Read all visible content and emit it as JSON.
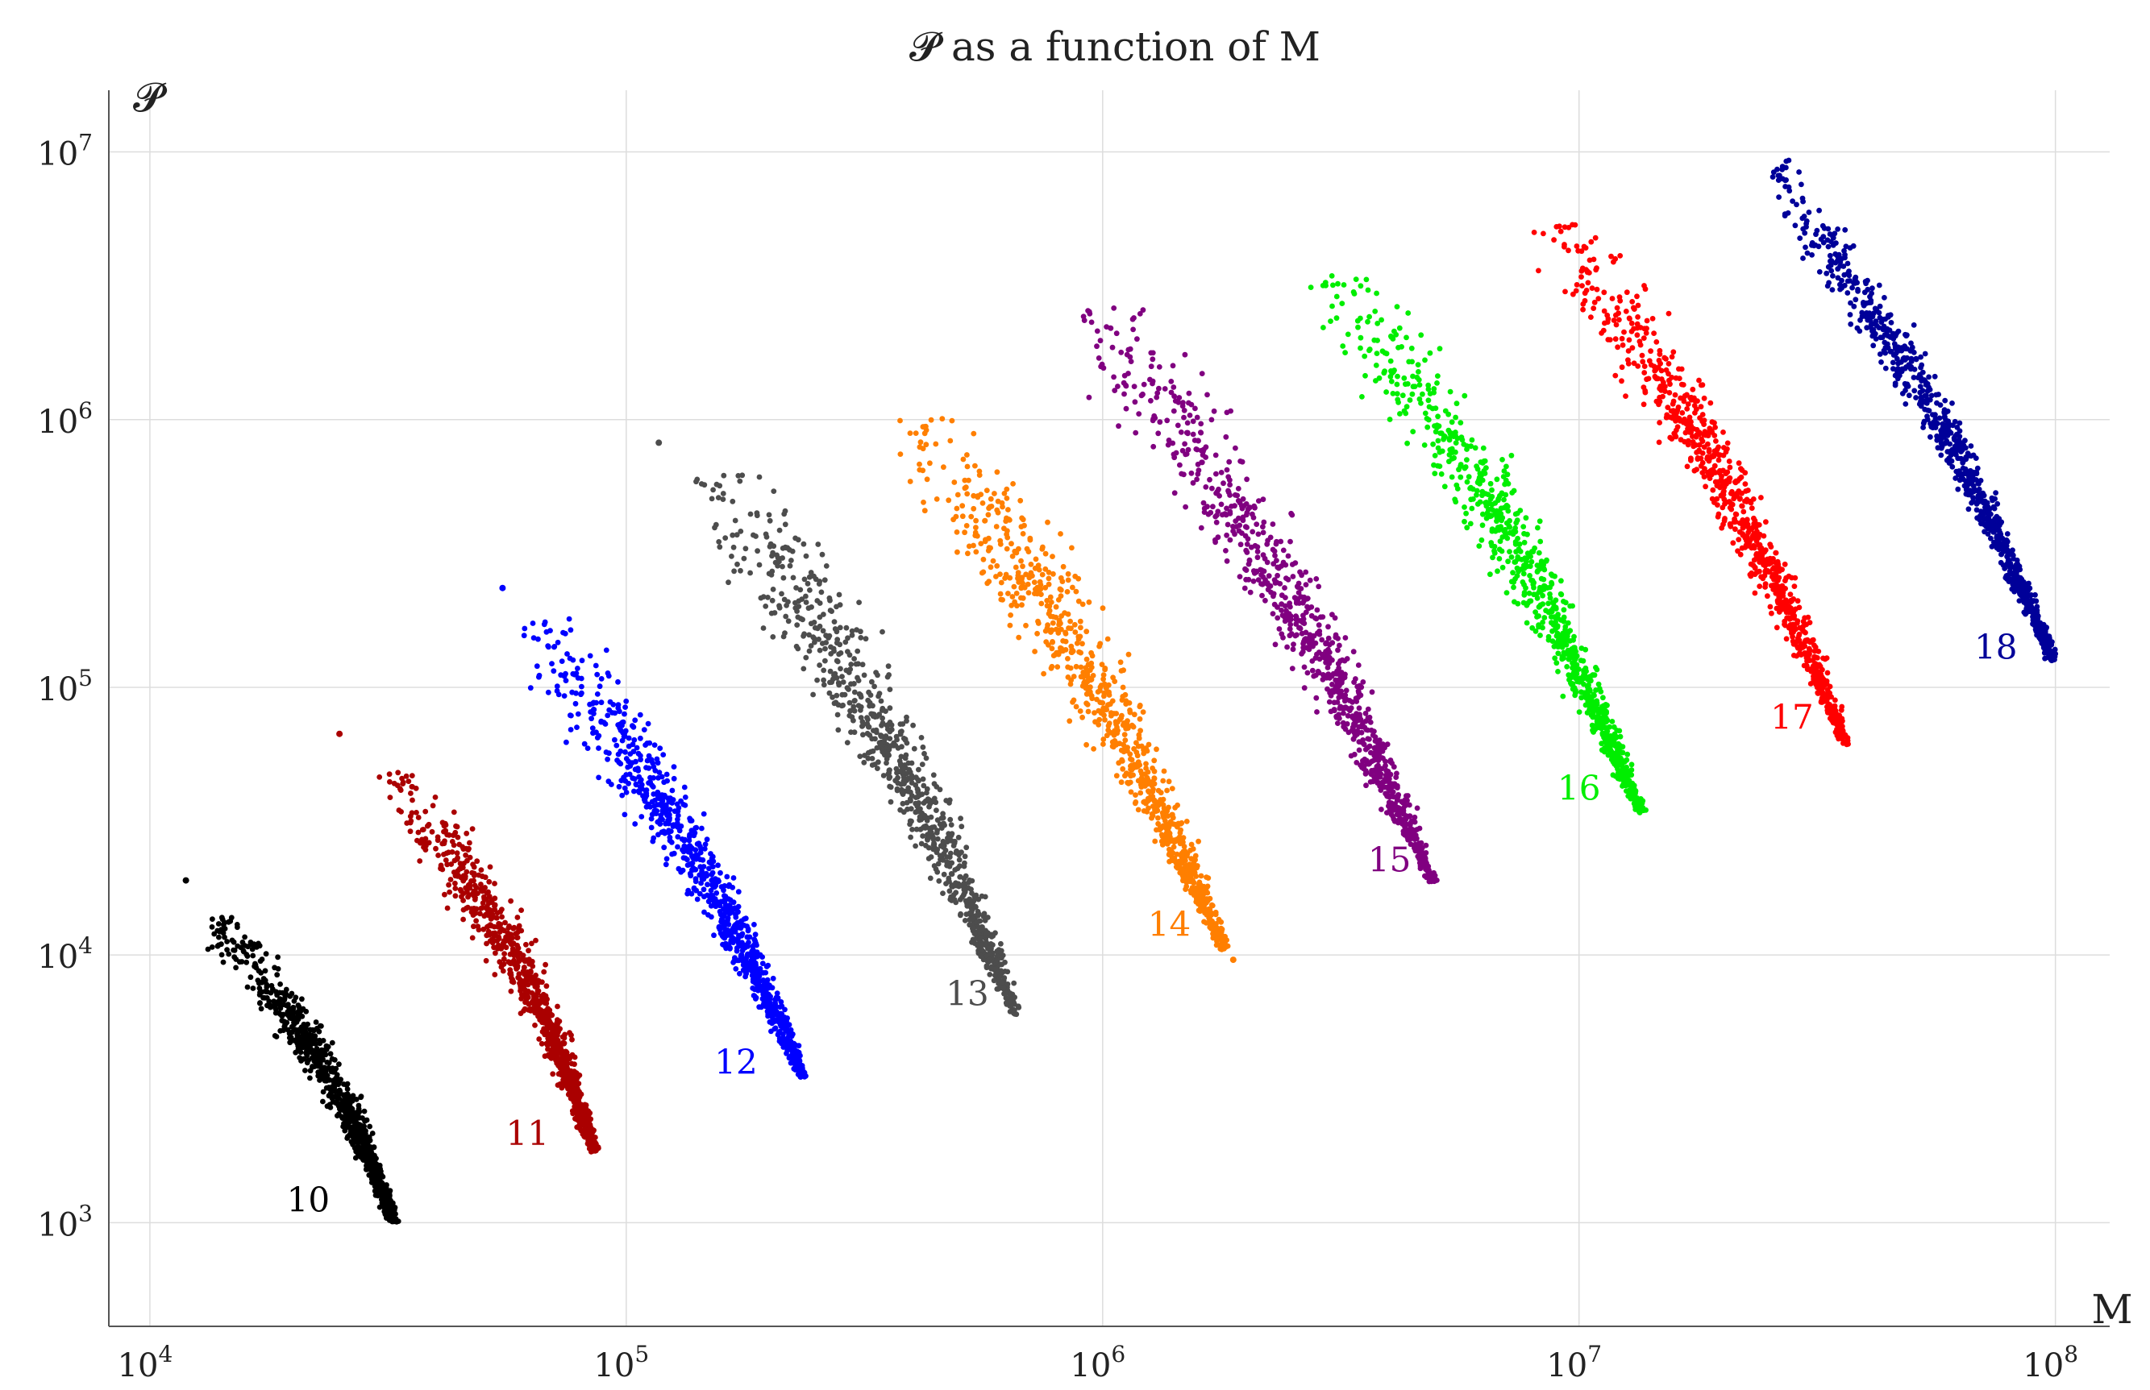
{
  "chart_data": {
    "type": "scatter",
    "title": "𝓟 as a function of M",
    "xlabel": "M",
    "ylabel": "𝓟",
    "xscale": "log",
    "yscale": "log",
    "xlim": [
      8200,
      130000000
    ],
    "ylim": [
      410,
      17000000
    ],
    "grid": true,
    "x_ticks": [
      {
        "value": 10000,
        "label": "10",
        "exp": "4"
      },
      {
        "value": 100000,
        "label": "10",
        "exp": "5"
      },
      {
        "value": 1000000,
        "label": "10",
        "exp": "6"
      },
      {
        "value": 10000000,
        "label": "10",
        "exp": "7"
      },
      {
        "value": 100000000,
        "label": "10",
        "exp": "8"
      }
    ],
    "y_ticks": [
      {
        "value": 1000,
        "label": "10",
        "exp": "3"
      },
      {
        "value": 10000,
        "label": "10",
        "exp": "4"
      },
      {
        "value": 100000,
        "label": "10",
        "exp": "5"
      },
      {
        "value": 1000000,
        "label": "10",
        "exp": "6"
      },
      {
        "value": 10000000,
        "label": "10",
        "exp": "7"
      }
    ],
    "series": [
      {
        "name": "10",
        "color": "#000000",
        "label_at": [
          21500,
          1100
        ],
        "core_start": [
          14500,
          12000
        ],
        "core_end": [
          32500,
          1000
        ],
        "width_start": 0.06,
        "width_end": 0.01,
        "outliers": [
          [
            11900,
            19000
          ]
        ]
      },
      {
        "name": "11",
        "color": "#aa0000",
        "label_at": [
          62000,
          1950
        ],
        "core_start": [
          35000,
          40000
        ],
        "core_end": [
          86000,
          1850
        ],
        "width_start": 0.07,
        "width_end": 0.01,
        "outliers": [
          [
            25000,
            67000
          ]
        ]
      },
      {
        "name": "12",
        "color": "#0000ff",
        "label_at": [
          170000,
          3600
        ],
        "core_start": [
          70000,
          140000
        ],
        "core_end": [
          235000,
          3500
        ],
        "width_start": 0.09,
        "width_end": 0.01,
        "outliers": [
          [
            55000,
            235000
          ]
        ]
      },
      {
        "name": "13",
        "color": "#4d4d4d",
        "label_at": [
          520000,
          6500
        ],
        "core_start": [
          170000,
          480000
        ],
        "core_end": [
          660000,
          6000
        ],
        "width_start": 0.12,
        "width_end": 0.01,
        "outliers": [
          [
            117000,
            820000
          ]
        ]
      },
      {
        "name": "14",
        "color": "#ff7f00",
        "label_at": [
          1380000,
          11800
        ],
        "core_start": [
          450000,
          790000
        ],
        "core_end": [
          1800000,
          10500
        ],
        "width_start": 0.12,
        "width_end": 0.01,
        "outliers": [
          [
            1880000,
            9600
          ]
        ]
      },
      {
        "name": "15",
        "color": "#800080",
        "label_at": [
          4000000,
          20500
        ],
        "core_start": [
          1080000,
          2000000
        ],
        "core_end": [
          4950000,
          18800
        ],
        "width_start": 0.13,
        "width_end": 0.01,
        "outliers": []
      },
      {
        "name": "16",
        "color": "#00ee00",
        "label_at": [
          10000000,
          38000
        ],
        "core_start": [
          3450000,
          2700000
        ],
        "core_end": [
          13500000,
          34000
        ],
        "width_start": 0.11,
        "width_end": 0.01,
        "outliers": []
      },
      {
        "name": "17",
        "color": "#ff0000",
        "label_at": [
          28000000,
          70000
        ],
        "core_start": [
          9800000,
          4300000
        ],
        "core_end": [
          36500000,
          61000
        ],
        "width_start": 0.09,
        "width_end": 0.01,
        "outliers": []
      },
      {
        "name": "18",
        "color": "#000099",
        "label_at": [
          75000000,
          128000
        ],
        "core_start": [
          27500000,
          7300000
        ],
        "core_end": [
          99000000,
          126000
        ],
        "width_start": 0.06,
        "width_end": 0.01,
        "outliers": []
      }
    ]
  }
}
